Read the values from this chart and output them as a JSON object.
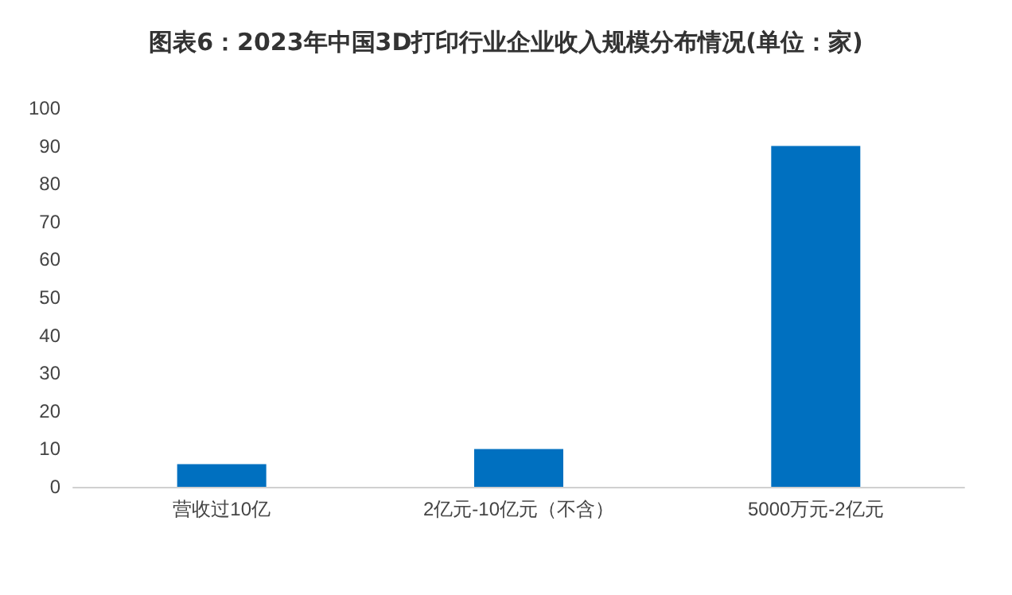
{
  "chart_data": {
    "type": "bar",
    "title": "图表6：2023年中国3D打印行业企业收入规模分布情况(单位：家)",
    "categories": [
      "营收过10亿",
      "2亿元-10亿元（不含）",
      "5000万元-2亿元"
    ],
    "values": [
      6,
      10,
      90
    ],
    "color": "#0070c0",
    "ylim": [
      0,
      100
    ],
    "yticks": [
      0,
      10,
      20,
      30,
      40,
      50,
      60,
      70,
      80,
      90,
      100
    ],
    "grid": false
  }
}
